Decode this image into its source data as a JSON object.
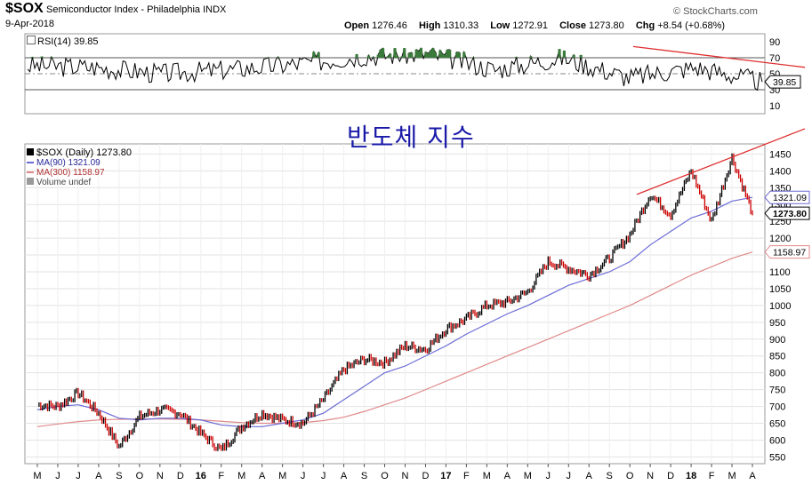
{
  "header": {
    "symbol": "$SOX",
    "description": "Semiconductor Index - Philadelphia  INDX",
    "date": "9-Apr-2018",
    "credit": "© StockCharts.com",
    "open_label": "Open",
    "open": "1276.46",
    "high_label": "High",
    "high": "1310.33",
    "low_label": "Low",
    "low": "1272.91",
    "close_label": "Close",
    "close": "1273.80",
    "chg_label": "Chg",
    "chg": "+8.54 (+0.68%)"
  },
  "annotation_text": "반도체 지수",
  "rsi_panel": {
    "legend": "RSI(14) 39.85",
    "current_label": "39.85"
  },
  "price_panel": {
    "legend_price": "$SOX (Daily) 1273.80",
    "legend_ma90": "MA(90) 1321.09",
    "legend_ma300": "MA(300) 1158.97",
    "legend_volume": "Volume undef",
    "tag_ma90": "1321.09",
    "tag_close": "1273.80",
    "tag_ma300": "1158.97"
  },
  "colors": {
    "price_up": "#000000",
    "price_down": "#cc0000",
    "ma90": "#6b6bd6",
    "ma300": "#e08a8a",
    "trendline": "#e03030",
    "rsi_line": "#000000",
    "rsi_overbought_fill": "#3a7a3a",
    "annotation": "#1a1aa8"
  },
  "chart_data": [
    {
      "type": "line",
      "title": "RSI(14) 39.85",
      "y_ticks": [
        10,
        30,
        50,
        70,
        90
      ],
      "ylim": [
        0,
        100
      ],
      "reference_lines": [
        30,
        50,
        70
      ],
      "last_value": 39.85,
      "x": [
        "2017-05",
        "2017-06",
        "2017-07",
        "2017-08",
        "2017-09",
        "2017-10",
        "2017-11",
        "2017-12",
        "2018-01",
        "2018-02",
        "2018-03",
        "2018-04"
      ],
      "series": [
        {
          "name": "RSI(14)",
          "values": [
            60,
            58,
            50,
            55,
            62,
            72,
            75,
            55,
            70,
            45,
            58,
            39.85
          ]
        }
      ]
    },
    {
      "type": "line",
      "title": "$SOX (Daily) 1273.80",
      "y_ticks": [
        550,
        600,
        650,
        700,
        750,
        800,
        850,
        900,
        950,
        1000,
        1050,
        1100,
        1150,
        1200,
        1250,
        1300,
        1350,
        1400,
        1450
      ],
      "ylim": [
        530,
        1480
      ],
      "x_ticks": [
        "M",
        "J",
        "J",
        "A",
        "S",
        "O",
        "N",
        "D",
        "16",
        "F",
        "M",
        "A",
        "M",
        "J",
        "J",
        "A",
        "S",
        "O",
        "N",
        "D",
        "17",
        "F",
        "M",
        "A",
        "M",
        "J",
        "J",
        "A",
        "S",
        "O",
        "N",
        "D",
        "18",
        "F",
        "M",
        "A"
      ],
      "x": [
        "2015-05",
        "2015-06",
        "2015-07",
        "2015-08",
        "2015-09",
        "2015-10",
        "2015-11",
        "2015-12",
        "2016-01",
        "2016-02",
        "2016-03",
        "2016-04",
        "2016-05",
        "2016-06",
        "2016-07",
        "2016-08",
        "2016-09",
        "2016-10",
        "2016-11",
        "2016-12",
        "2017-01",
        "2017-02",
        "2017-03",
        "2017-04",
        "2017-05",
        "2017-06",
        "2017-07",
        "2017-08",
        "2017-09",
        "2017-10",
        "2017-11",
        "2017-12",
        "2018-01",
        "2018-02",
        "2018-03",
        "2018-04"
      ],
      "series": [
        {
          "name": "$SOX",
          "values": [
            705,
            700,
            740,
            680,
            580,
            670,
            690,
            680,
            620,
            570,
            640,
            680,
            660,
            650,
            720,
            810,
            840,
            830,
            880,
            870,
            930,
            960,
            1000,
            1010,
            1040,
            1130,
            1110,
            1090,
            1140,
            1210,
            1330,
            1270,
            1400,
            1250,
            1440,
            1273.8
          ]
        },
        {
          "name": "MA(90)",
          "values": [
            690,
            700,
            705,
            690,
            665,
            660,
            665,
            665,
            660,
            645,
            640,
            640,
            650,
            660,
            680,
            720,
            760,
            800,
            820,
            850,
            880,
            915,
            945,
            975,
            1000,
            1030,
            1060,
            1080,
            1100,
            1130,
            1180,
            1220,
            1260,
            1280,
            1310,
            1321.09
          ]
        },
        {
          "name": "MA(300)",
          "values": [
            640,
            648,
            655,
            660,
            662,
            663,
            663,
            662,
            660,
            656,
            652,
            650,
            650,
            652,
            658,
            668,
            685,
            705,
            725,
            750,
            775,
            800,
            825,
            850,
            875,
            900,
            925,
            950,
            975,
            1000,
            1030,
            1060,
            1090,
            1115,
            1140,
            1158.97
          ]
        }
      ]
    }
  ]
}
